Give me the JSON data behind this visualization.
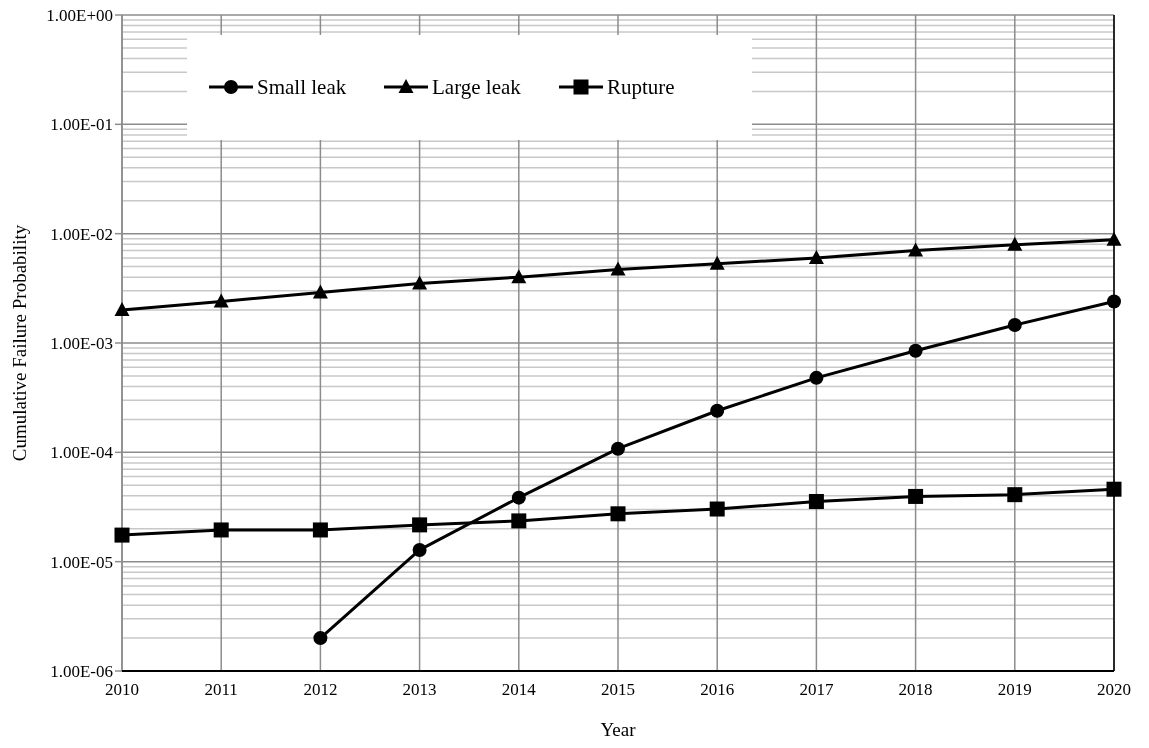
{
  "chart_data": {
    "type": "line",
    "xlabel": "Year",
    "ylabel": "Cumulative Failure Probability",
    "x": [
      2010,
      2011,
      2012,
      2013,
      2014,
      2015,
      2016,
      2017,
      2018,
      2019,
      2020
    ],
    "xlim": [
      2010,
      2020
    ],
    "xticks": [
      2010,
      2011,
      2012,
      2013,
      2014,
      2015,
      2016,
      2017,
      2018,
      2019,
      2020
    ],
    "log": true,
    "ylim": [
      1e-06,
      1
    ],
    "yticks": [
      {
        "value": 1e-06,
        "label": "1.00E-06"
      },
      {
        "value": 1e-05,
        "label": "1.00E-05"
      },
      {
        "value": 0.0001,
        "label": "1.00E-04"
      },
      {
        "value": 0.001,
        "label": "1.00E-03"
      },
      {
        "value": 0.01,
        "label": "1.00E-02"
      },
      {
        "value": 0.1,
        "label": "1.00E-01"
      },
      {
        "value": 1,
        "label": "1.00E+00"
      }
    ],
    "grid": true,
    "legend": "top left",
    "line_style": "solid",
    "series": [
      {
        "name": "Small leak",
        "color": "#000000",
        "marker": "circle",
        "values": [
          null,
          null,
          2e-06,
          1.28e-05,
          3.85e-05,
          0.000108,
          0.00024,
          0.00048,
          0.00085,
          0.00146,
          0.0024
        ]
      },
      {
        "name": "Large leak",
        "color": "#000000",
        "marker": "triangle",
        "values": [
          0.002,
          0.0024,
          0.0029,
          0.0035,
          0.004,
          0.0047,
          0.0053,
          0.006,
          0.007,
          0.0079,
          0.0088
        ]
      },
      {
        "name": "Rupture",
        "color": "#000000",
        "marker": "square",
        "values": [
          1.75e-05,
          1.95e-05,
          1.95e-05,
          2.17e-05,
          2.36e-05,
          2.74e-05,
          3.03e-05,
          3.55e-05,
          3.95e-05,
          4.1e-05,
          4.6e-05
        ]
      }
    ]
  }
}
